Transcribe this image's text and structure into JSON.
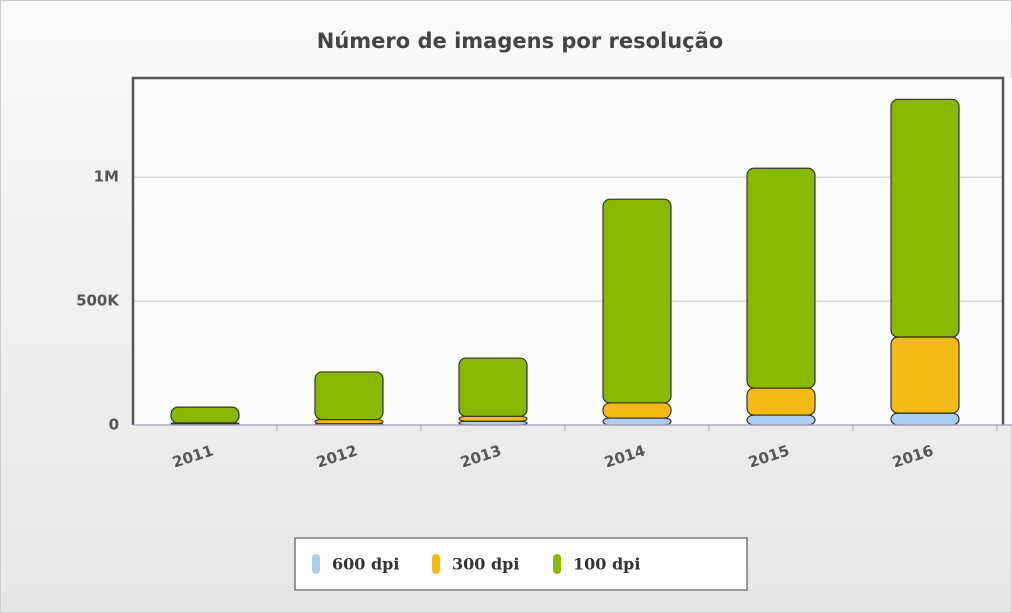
{
  "chart_data": {
    "type": "stacked_bar",
    "title": "Número de imagens por resolução",
    "categories": [
      "2011",
      "2012",
      "2013",
      "2014",
      "2015",
      "2016"
    ],
    "series": [
      {
        "name": "600 dpi",
        "color": "#a8d0f0",
        "values": [
          5000,
          5000,
          15000,
          28000,
          40000,
          48000
        ]
      },
      {
        "name": "300 dpi",
        "color": "#f5b914",
        "values": [
          3000,
          17000,
          20000,
          61000,
          109000,
          307000
        ]
      },
      {
        "name": "100 dpi",
        "color": "#88b800",
        "values": [
          64000,
          192000,
          235000,
          822000,
          887000,
          959000
        ]
      }
    ],
    "ylim": [
      0,
      1400000
    ],
    "yticks": [
      0,
      {
        "value": 500000,
        "label": "500K"
      },
      {
        "value": 1000000,
        "label": "1M"
      }
    ],
    "grid": true
  }
}
